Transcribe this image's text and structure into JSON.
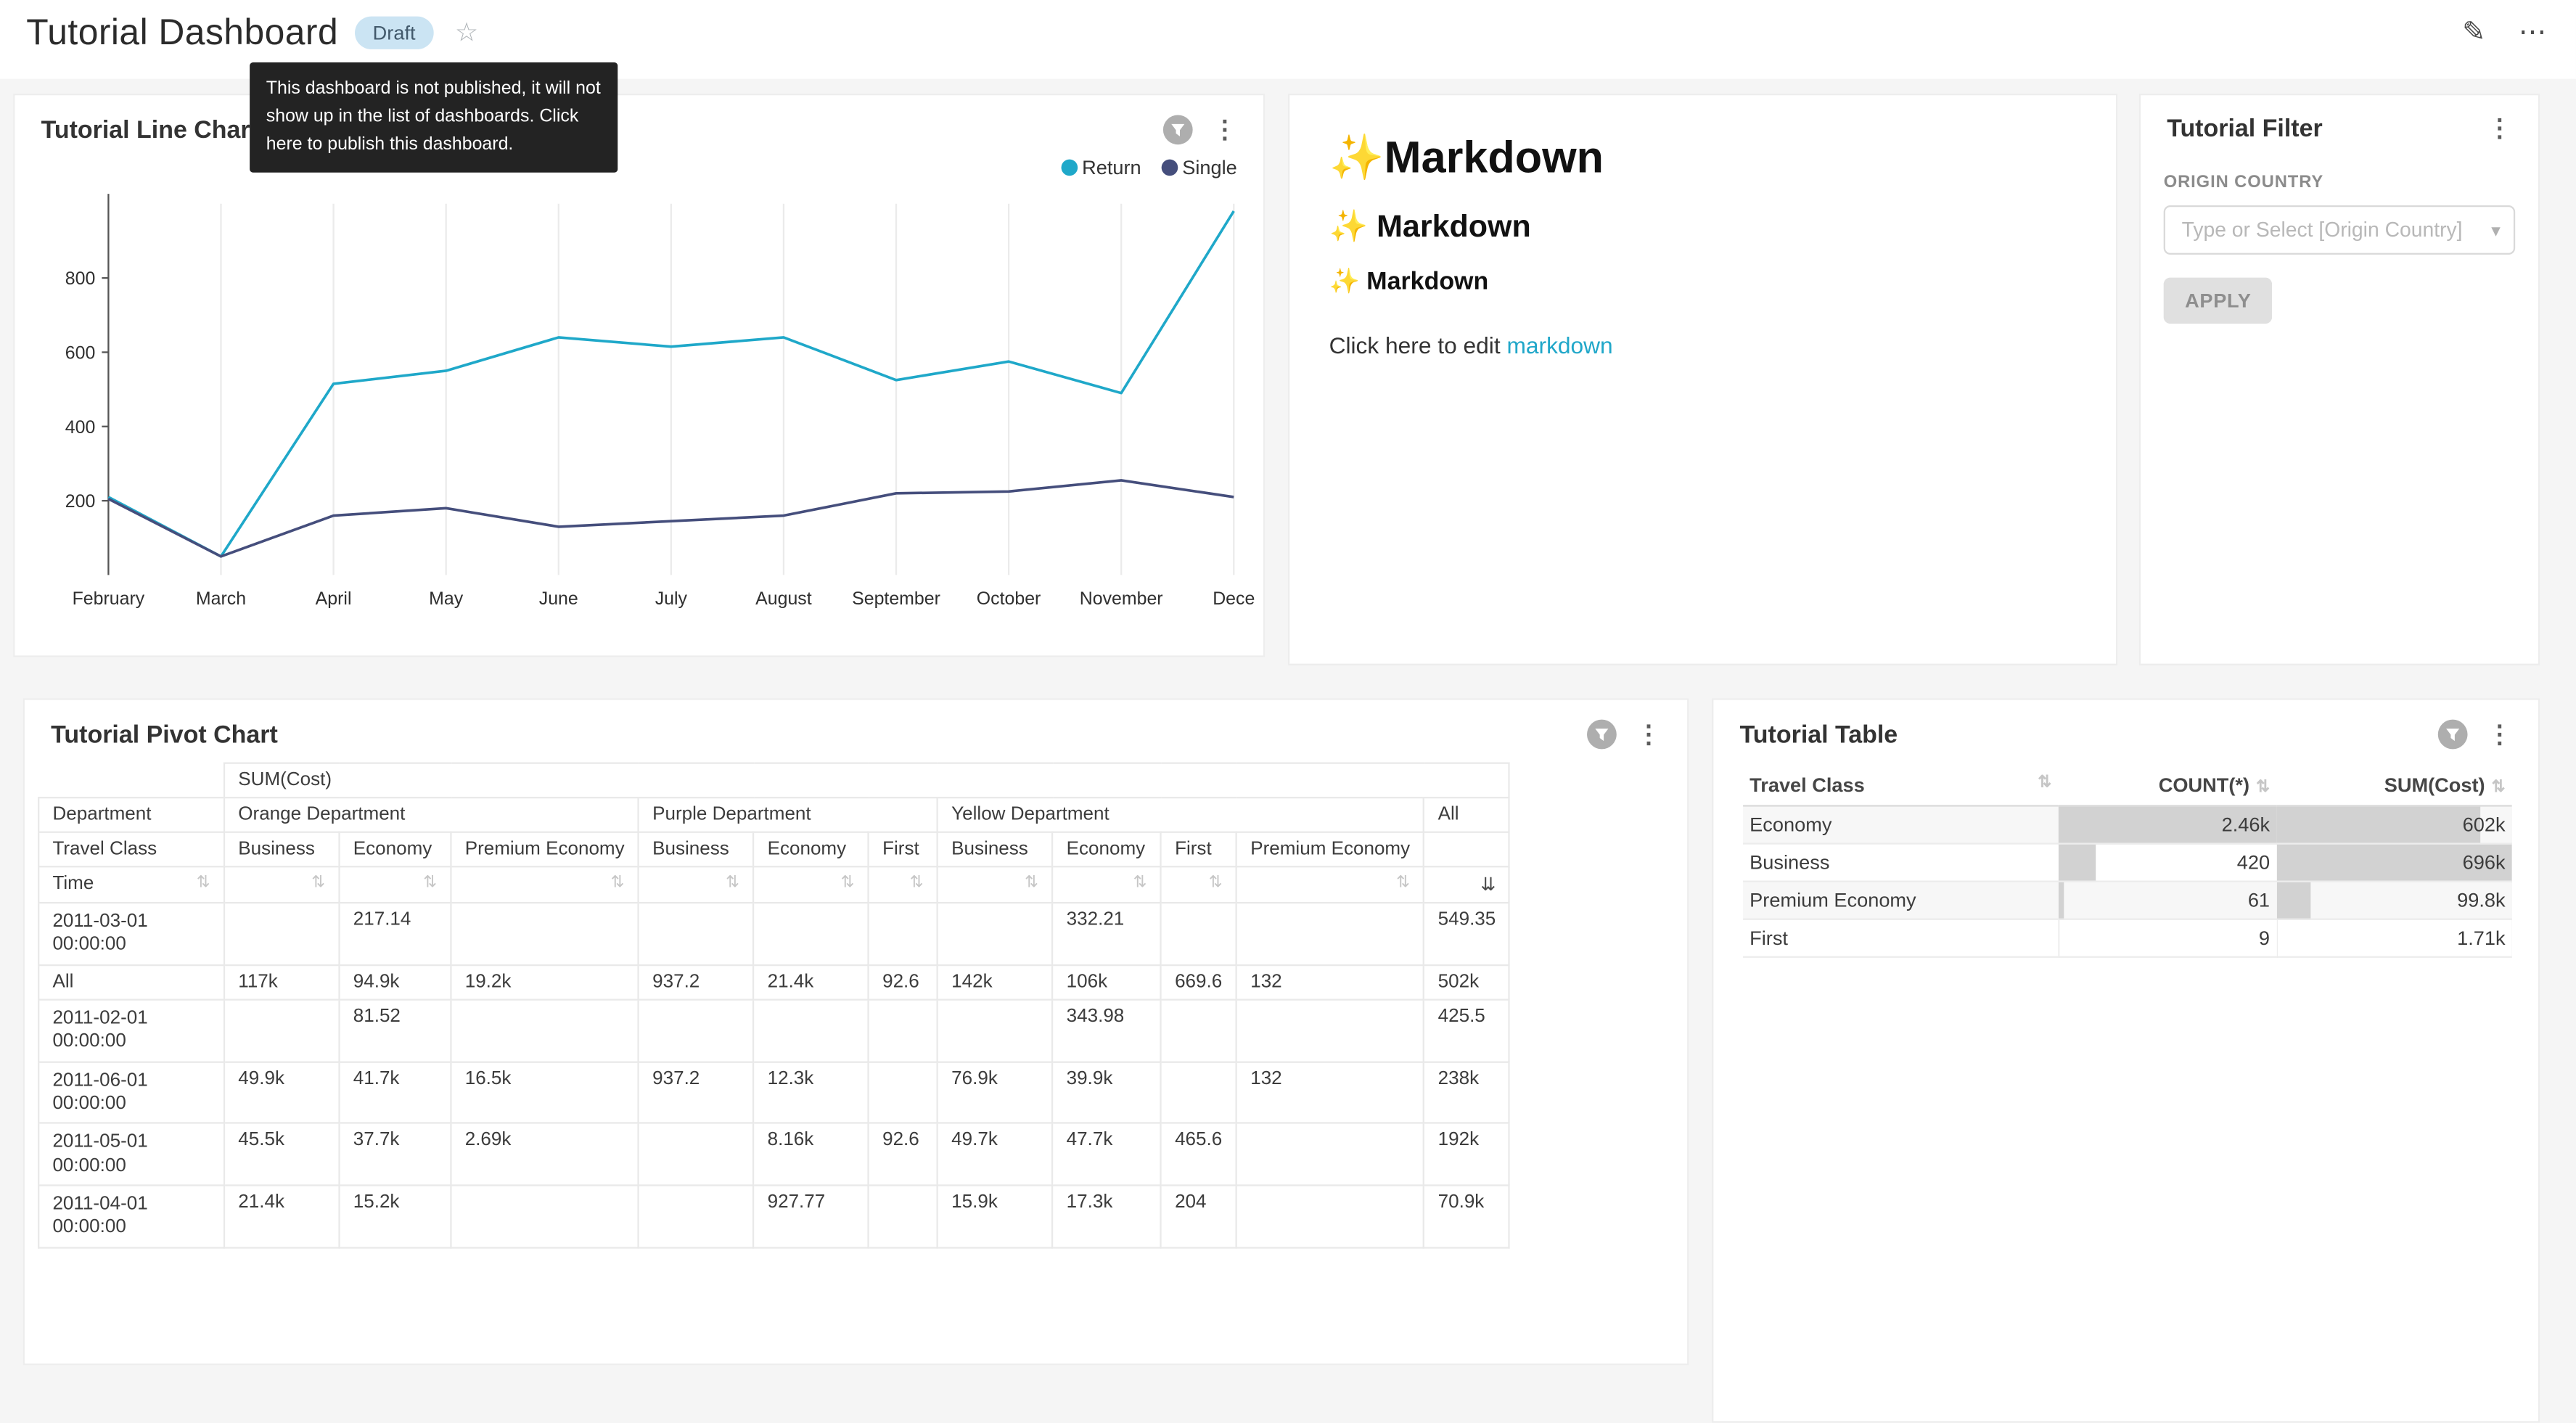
{
  "icons": {
    "edit": "✎",
    "more_horizontal": "⋯",
    "more_vertical": "⋮",
    "star": "☆",
    "caret_down": "▾",
    "sort": "⇅",
    "sort_desc": "⇊"
  },
  "header": {
    "title": "Tutorial Dashboard",
    "badge": "Draft",
    "tooltip": "This dashboard is not published, it will not show up in the list of dashboards. Click here to publish this dashboard."
  },
  "line_chart_card": {
    "title": "Tutorial Line Chart"
  },
  "chart_data": {
    "type": "line",
    "title": "Tutorial Line Chart",
    "x": [
      "February",
      "March",
      "April",
      "May",
      "June",
      "July",
      "August",
      "September",
      "October",
      "November",
      "December"
    ],
    "x_tick_labels": [
      "February",
      "March",
      "April",
      "May",
      "June",
      "July",
      "August",
      "September",
      "October",
      "November",
      "Dece"
    ],
    "series": [
      {
        "name": "Return",
        "color": "#1FA8C9",
        "values": [
          210,
          50,
          515,
          550,
          640,
          615,
          640,
          525,
          575,
          490,
          980
        ]
      },
      {
        "name": "Single",
        "color": "#454E7C",
        "values": [
          205,
          50,
          160,
          180,
          130,
          145,
          160,
          220,
          225,
          255,
          210
        ]
      }
    ],
    "ylim": [
      0,
      1000
    ],
    "yticks": [
      200,
      400,
      600,
      800
    ],
    "legend_position": "top-right",
    "grid": "vertical"
  },
  "markdown_card": {
    "h1": "✨Markdown",
    "h2": "✨ Markdown",
    "h3": "✨ Markdown",
    "paragraph_prefix": "Click here to edit ",
    "link_text": "markdown"
  },
  "filter_card": {
    "title": "Tutorial Filter",
    "field_label": "ORIGIN COUNTRY",
    "select_placeholder": "Type or Select [Origin Country]",
    "apply_label": "APPLY"
  },
  "pivot_card": {
    "title": "Tutorial Pivot Chart",
    "metric_header": "SUM(Cost)",
    "dept_row": {
      "label": "Department",
      "groups": [
        {
          "label": "Orange Department",
          "span": 3
        },
        {
          "label": "Purple Department",
          "span": 3
        },
        {
          "label": "Yellow Department",
          "span": 4
        },
        {
          "label": "All",
          "span": 1
        }
      ]
    },
    "class_row": {
      "label": "Travel Class",
      "cols": [
        "Business",
        "Economy",
        "Premium Economy",
        "Business",
        "Economy",
        "First",
        "Business",
        "Economy",
        "First",
        "Premium Economy",
        ""
      ]
    },
    "time_label": "Time",
    "rows": [
      {
        "time": "2011-03-01 00:00:00",
        "values": [
          "",
          "217.14",
          "",
          "",
          "",
          "",
          "",
          "332.21",
          "",
          "",
          "549.35"
        ]
      },
      {
        "time": "All",
        "values": [
          "117k",
          "94.9k",
          "19.2k",
          "937.2",
          "21.4k",
          "92.6",
          "142k",
          "106k",
          "669.6",
          "132",
          "502k"
        ]
      },
      {
        "time": "2011-02-01 00:00:00",
        "values": [
          "",
          "81.52",
          "",
          "",
          "",
          "",
          "",
          "343.98",
          "",
          "",
          "425.5"
        ]
      },
      {
        "time": "2011-06-01 00:00:00",
        "values": [
          "49.9k",
          "41.7k",
          "16.5k",
          "937.2",
          "12.3k",
          "",
          "76.9k",
          "39.9k",
          "",
          "132",
          "238k"
        ]
      },
      {
        "time": "2011-05-01 00:00:00",
        "values": [
          "45.5k",
          "37.7k",
          "2.69k",
          "",
          "8.16k",
          "92.6",
          "49.7k",
          "47.7k",
          "465.6",
          "",
          "192k"
        ]
      },
      {
        "time": "2011-04-01 00:00:00",
        "values": [
          "21.4k",
          "15.2k",
          "",
          "",
          "927.77",
          "",
          "15.9k",
          "17.3k",
          "204",
          "",
          "70.9k"
        ]
      }
    ]
  },
  "table_card": {
    "title": "Tutorial Table",
    "columns": [
      "Travel Class",
      "COUNT(*)",
      "SUM(Cost)"
    ],
    "bar_color": "#d2d2d2",
    "rows": [
      {
        "travel_class": "Economy",
        "count": "2.46k",
        "count_value": 2460,
        "sum": "602k",
        "sum_value": 602000
      },
      {
        "travel_class": "Business",
        "count": "420",
        "count_value": 420,
        "sum": "696k",
        "sum_value": 696000
      },
      {
        "travel_class": "Premium Economy",
        "count": "61",
        "count_value": 61,
        "sum": "99.8k",
        "sum_value": 99800
      },
      {
        "travel_class": "First",
        "count": "9",
        "count_value": 9,
        "sum": "1.71k",
        "sum_value": 1710
      }
    ]
  }
}
